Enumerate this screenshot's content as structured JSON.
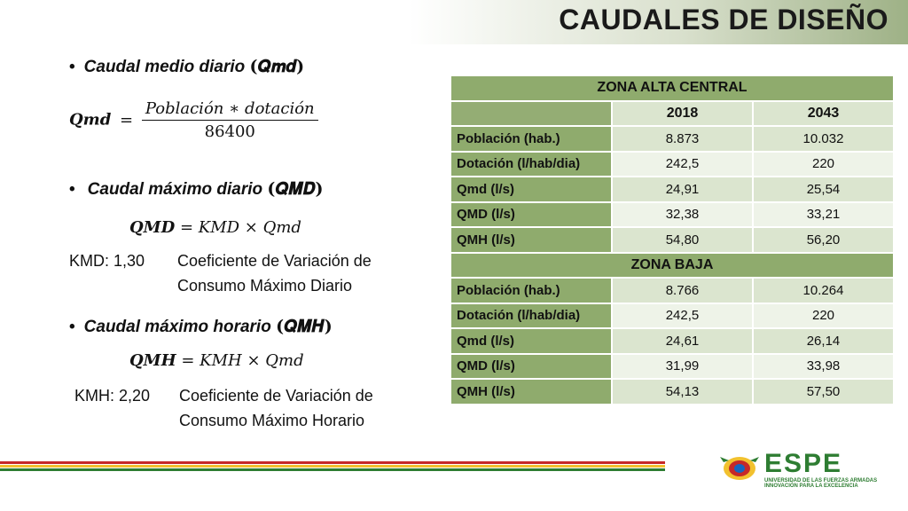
{
  "title": "CAUDALES DE DISEÑO",
  "bullets": {
    "b1": {
      "text": "Caudal medio diario",
      "sym": "(𝑸𝒎𝒅)"
    },
    "b2": {
      "text": "Caudal máximo diario",
      "sym": "(𝑸𝑴𝑫)"
    },
    "b3": {
      "text": "Caudal máximo horario",
      "sym": "(𝑸𝑴𝑯)"
    }
  },
  "formulas": {
    "qmd_lhs": "𝑸𝒎𝒅",
    "qmd_num": "Población ∗ dotación",
    "qmd_den": "86400",
    "qmD_lhs": "𝑸𝑴𝑫",
    "qmD_rhs": "= KMD × Qmd",
    "qmh_lhs": "𝑸𝑴𝑯",
    "qmh_rhs": "= KMH × Qmd"
  },
  "coefficients": {
    "kmd_label": "KMD: 1,30",
    "kmd_desc1": "Coeficiente de Variación de",
    "kmd_desc2": "Consumo Máximo Diario",
    "kmh_label": "KMH: 2,20",
    "kmh_desc1": "Coeficiente de Variación de",
    "kmh_desc2": "Consumo Máximo Horario"
  },
  "table": {
    "zone1": "ZONA ALTA CENTRAL",
    "year1": "2018",
    "year2": "2043",
    "zone2": "ZONA BAJA",
    "z1": [
      {
        "label": "Población (hab.)",
        "v1": "8.873",
        "v2": "10.032"
      },
      {
        "label": "Dotación (l/hab/dia)",
        "v1": "242,5",
        "v2": "220"
      },
      {
        "label": "Qmd (l/s)",
        "v1": "24,91",
        "v2": "25,54"
      },
      {
        "label": "QMD  (l/s)",
        "v1": "32,38",
        "v2": "33,21"
      },
      {
        "label": "QMH (l/s)",
        "v1": "54,80",
        "v2": "56,20"
      }
    ],
    "z2": [
      {
        "label": "Población (hab.)",
        "v1": "8.766",
        "v2": "10.264"
      },
      {
        "label": "Dotación (l/hab/dia)",
        "v1": "242,5",
        "v2": "220"
      },
      {
        "label": "Qmd (l/s)",
        "v1": "24,61",
        "v2": "26,14"
      },
      {
        "label": "QMD  (l/s)",
        "v1": "31,99",
        "v2": "33,98"
      },
      {
        "label": "QMH (l/s)",
        "v1": "54,13",
        "v2": "57,50"
      }
    ]
  },
  "logo": {
    "name": "ESPE",
    "sub1": "UNIVERSIDAD DE LAS FUERZAS ARMADAS",
    "sub2": "INNOVACIÓN PARA LA EXCELENCIA"
  },
  "colors": {
    "table_green": "#8fab6d",
    "table_light": "#dbe5cf",
    "footer_red": "#c62828",
    "footer_green": "#2e7d32",
    "footer_yellow": "#f2c12e"
  }
}
